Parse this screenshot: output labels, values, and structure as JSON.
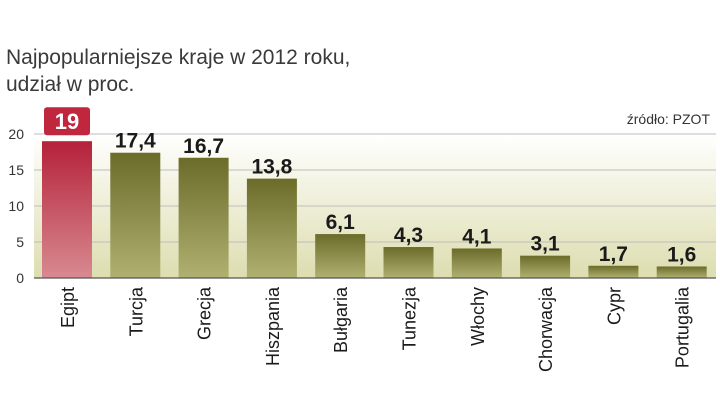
{
  "title_lines": [
    "Najpopularniejsze kraje w 2012 roku,",
    "udział w proc."
  ],
  "source": "źródło: PZOT",
  "chart_data": {
    "type": "bar",
    "categories": [
      "Egipt",
      "Turcja",
      "Grecja",
      "Hiszpania",
      "Bułgaria",
      "Tunezja",
      "Włochy",
      "Chorwacja",
      "Cypr",
      "Portugalia"
    ],
    "values": [
      19,
      17.4,
      16.7,
      13.8,
      6.1,
      4.3,
      4.1,
      3.1,
      1.7,
      1.6
    ],
    "value_labels": [
      "19",
      "17,4",
      "16,7",
      "13,8",
      "6,1",
      "4,3",
      "4,1",
      "3,1",
      "1,7",
      "1,6"
    ],
    "highlight_index": 0,
    "ylim": [
      0,
      20
    ],
    "yticks": [
      0,
      5,
      10,
      15,
      20
    ],
    "grid": true,
    "colors": {
      "bar": "#7a7a33",
      "bar_highlight": "#c0263e",
      "label_highlight_bg": "#c0263e",
      "plot_bg_top": "#ffffff",
      "plot_bg_bottom": "#ddddb0",
      "grid": "#bdbdbd",
      "text": "#333333"
    }
  }
}
